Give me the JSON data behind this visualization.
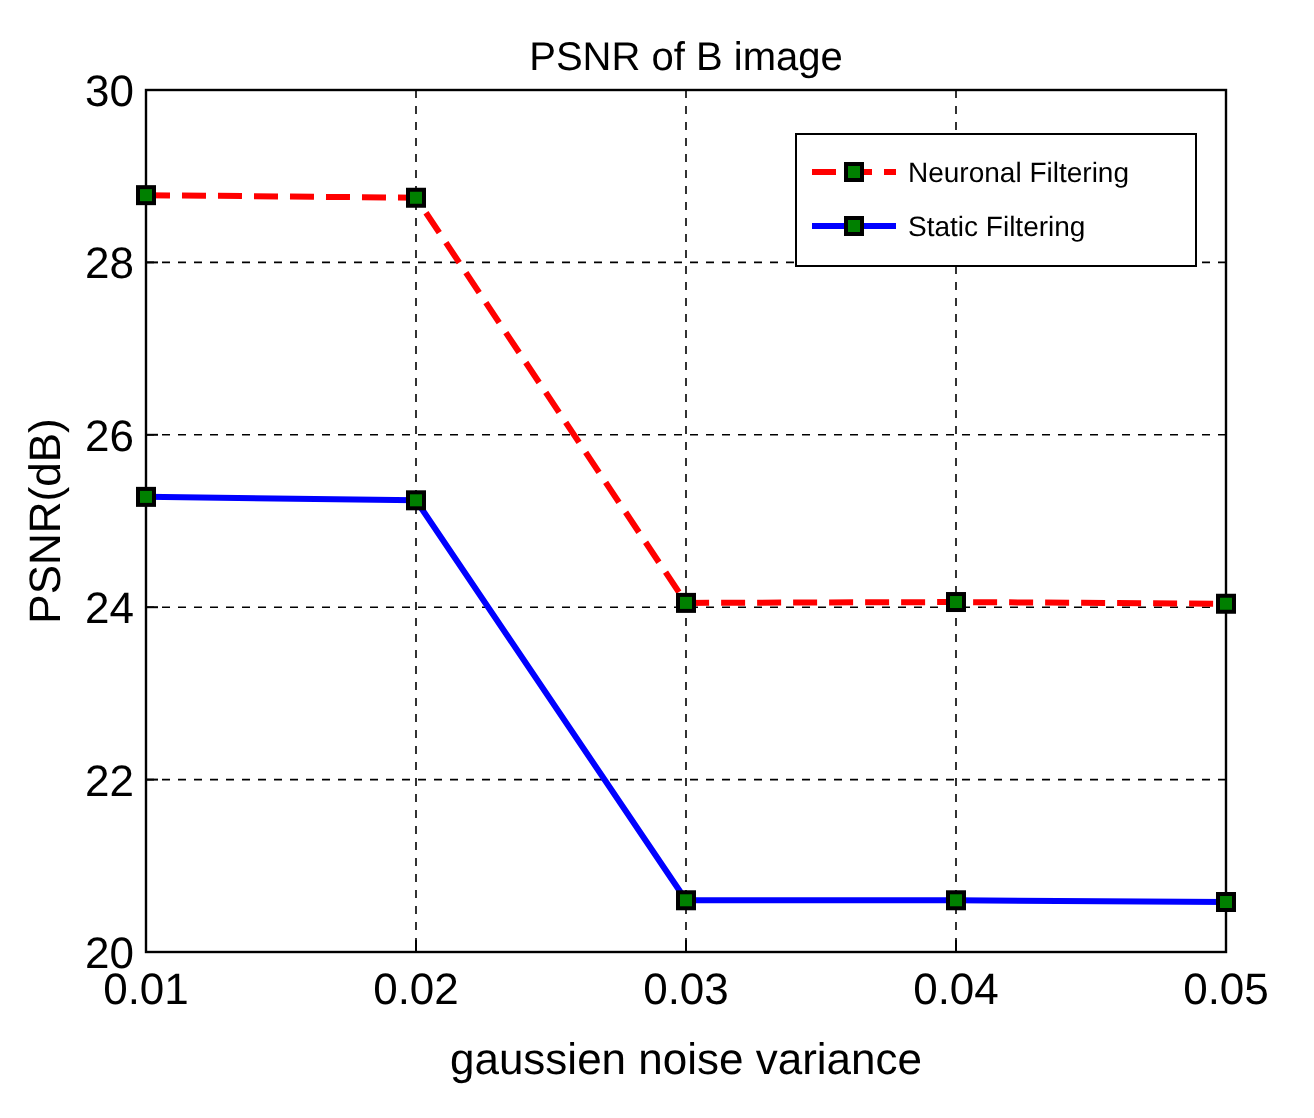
{
  "chart_data": {
    "type": "line",
    "title": "PSNR of B image",
    "xlabel": "gaussien noise variance",
    "ylabel": "PSNR(dB)",
    "x": [
      0.01,
      0.02,
      0.03,
      0.04,
      0.05
    ],
    "series": [
      {
        "name": "Neuronal Filtering",
        "color": "#ff0000",
        "line_style": "dashed",
        "values": [
          28.78,
          28.75,
          24.05,
          24.06,
          24.04
        ]
      },
      {
        "name": "Static Filtering",
        "color": "#0000ff",
        "line_style": "solid",
        "values": [
          25.28,
          25.24,
          20.6,
          20.6,
          20.58
        ]
      }
    ],
    "xlim": [
      0.01,
      0.05
    ],
    "xticks": [
      0.01,
      0.02,
      0.03,
      0.04,
      0.05
    ],
    "ylim": [
      20,
      30
    ],
    "yticks": [
      20,
      22,
      24,
      26,
      28,
      30
    ],
    "grid": true,
    "legend": "top right",
    "marker": "square"
  }
}
